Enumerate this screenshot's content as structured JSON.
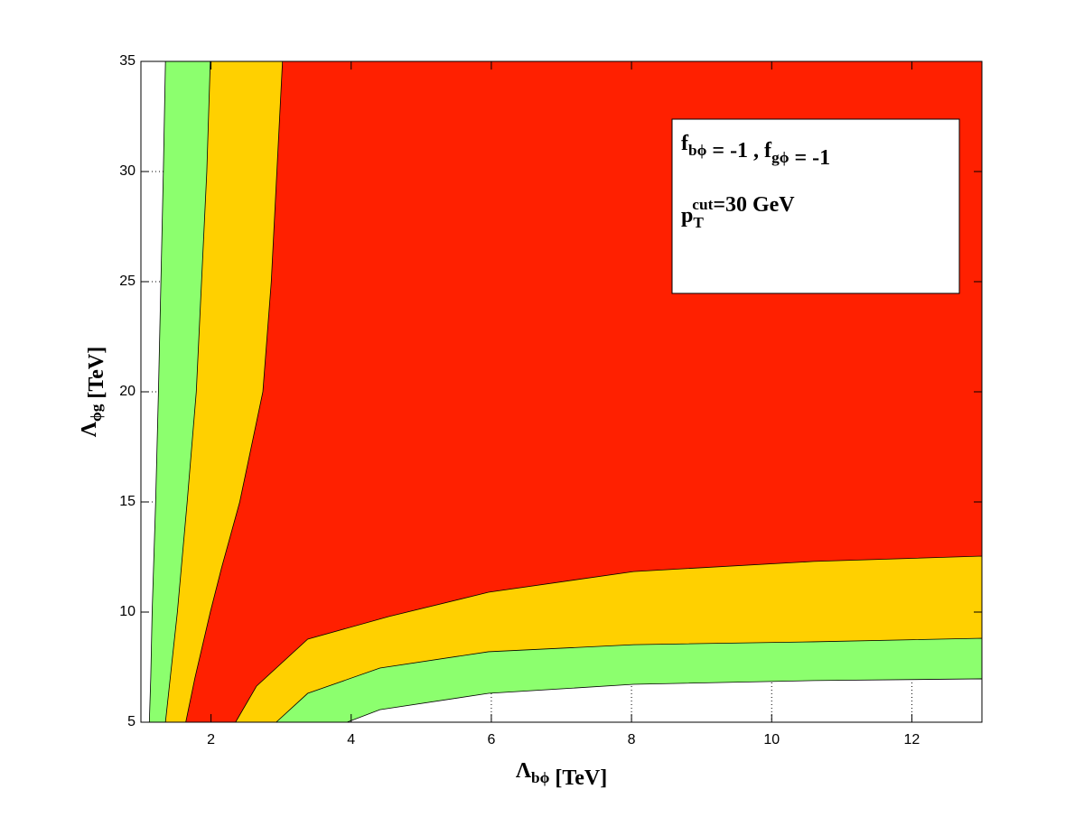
{
  "chart_data": {
    "type": "contour",
    "xlabel": [
      "Λ",
      {
        "sub": "bϕ"
      },
      " [TeV]"
    ],
    "ylabel": [
      "Λ",
      {
        "sub": "ϕg"
      },
      " [TeV]"
    ],
    "annotations": [
      [
        "f",
        {
          "sub": "bϕ"
        },
        " = -1 , f",
        {
          "sub": "gϕ"
        },
        " = -1"
      ],
      [
        "p",
        {
          "sub": "T",
          "sup": "cut"
        },
        "=30 GeV"
      ]
    ],
    "background_color": "#ff2000",
    "xlim": [
      1,
      13
    ],
    "ylim": [
      5,
      35
    ],
    "xticks": [
      2,
      4,
      6,
      8,
      10,
      12
    ],
    "yticks": [
      5,
      10,
      15,
      20,
      25,
      30,
      35
    ],
    "grid": true,
    "series": [
      {
        "color": "#ffd000",
        "x": [
          3.02,
          2.86,
          2.74,
          2.41,
          2.15,
          1.99,
          1.77,
          1.64,
          null,
          2.35,
          2.65,
          3.38,
          4.54,
          5.96,
          8.03,
          10.6,
          13
        ],
        "y": [
          35,
          25,
          20,
          15,
          12,
          10,
          7,
          5,
          null,
          5,
          6.64,
          8.77,
          9.8,
          10.9,
          11.84,
          12.3,
          12.54
        ]
      },
      {
        "color": "#8cff6e",
        "x": [
          1.99,
          1.94,
          1.79,
          1.66,
          1.52,
          1.35,
          null,
          2.93,
          3.38,
          4.41,
          5.96,
          8.03,
          10.6,
          13
        ],
        "y": [
          35,
          30,
          20,
          15,
          10,
          5,
          null,
          5,
          6.31,
          7.46,
          8.2,
          8.52,
          8.65,
          8.81
        ]
      },
      {
        "color": "#ffffff",
        "x": [
          1.35,
          1.32,
          1.25,
          1.21,
          1.16,
          1.14,
          1.12,
          null,
          3.94,
          4.41,
          5.96,
          8.03,
          10.6,
          13
        ],
        "y": [
          35,
          30,
          20,
          15,
          10,
          7,
          5,
          null,
          5,
          5.57,
          6.31,
          6.72,
          6.89,
          6.97
        ]
      }
    ]
  }
}
